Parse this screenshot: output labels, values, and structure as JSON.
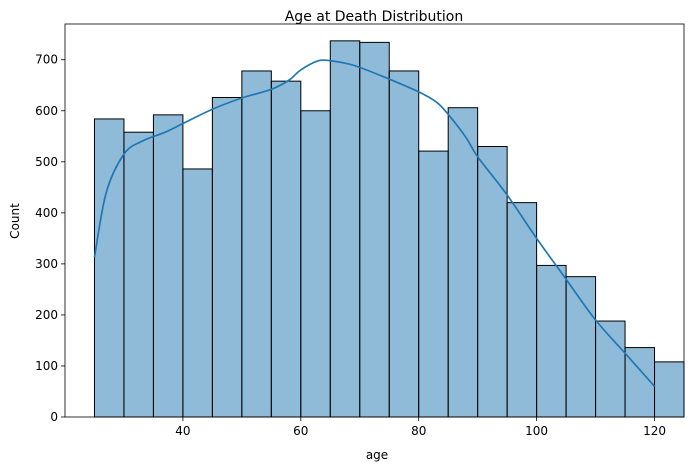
{
  "chart_data": {
    "type": "bar",
    "subtype": "histogram-with-kde",
    "title": "Age at Death Distribution",
    "xlabel": "age",
    "ylabel": "Count",
    "xlim": [
      20,
      125
    ],
    "ylim": [
      0,
      770
    ],
    "xticks": [
      40,
      60,
      80,
      100,
      120
    ],
    "yticks": [
      0,
      100,
      200,
      300,
      400,
      500,
      600,
      700
    ],
    "grid": false,
    "legend": "none",
    "bin_edges": [
      25,
      30,
      35,
      40,
      45,
      50,
      55,
      60,
      65,
      70,
      75,
      80,
      85,
      90,
      95,
      100,
      105,
      110,
      115,
      120
    ],
    "values": [
      584,
      558,
      592,
      486,
      626,
      678,
      658,
      600,
      737,
      734,
      678,
      521,
      606,
      530,
      420,
      297,
      275,
      188,
      136,
      108
    ],
    "kde": {
      "x": [
        25,
        27,
        30,
        33,
        37,
        40,
        45,
        50,
        55,
        58,
        60,
        63,
        65,
        68,
        70,
        75,
        80,
        83,
        85,
        88,
        90,
        95,
        100,
        105,
        110,
        115,
        120
      ],
      "y": [
        313,
        440,
        515,
        540,
        558,
        575,
        603,
        625,
        642,
        660,
        680,
        698,
        698,
        692,
        685,
        662,
        637,
        617,
        593,
        548,
        510,
        435,
        350,
        270,
        190,
        125,
        60
      ]
    },
    "colors": {
      "bar_fill": "#1f77b4",
      "bar_fill_opacity": 0.5,
      "bar_edge": "#000000",
      "kde_line": "#1f77b4"
    }
  }
}
